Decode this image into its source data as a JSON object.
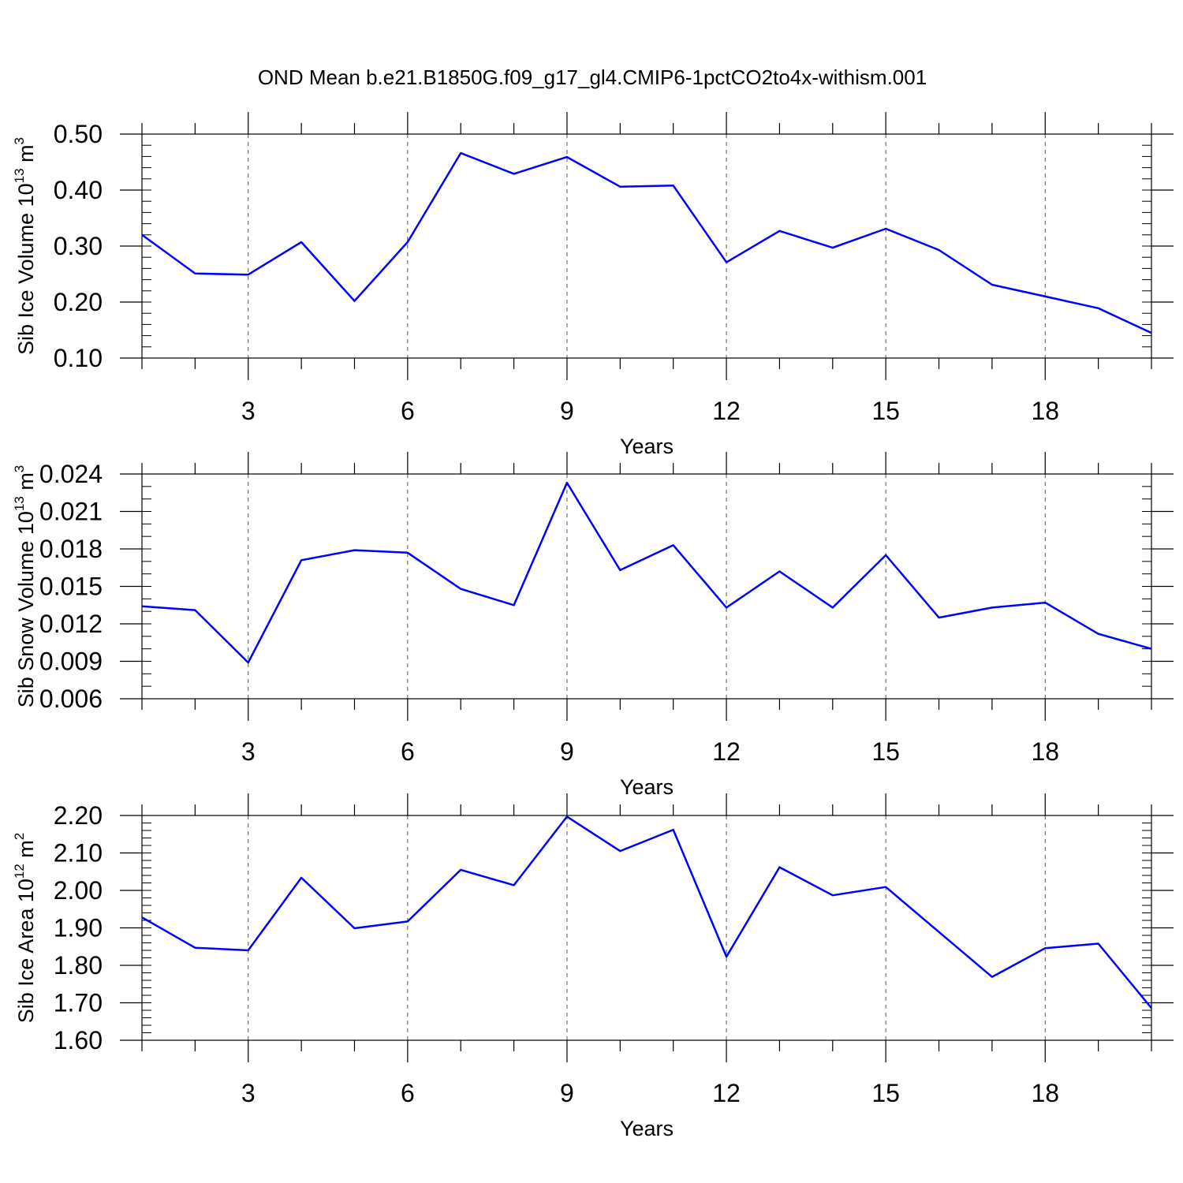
{
  "title": "OND Mean b.e21.B1850G.f09_g17_gl4.CMIP6-1pctCO2to4x-withism.001",
  "colors": {
    "line": "#0000ff",
    "axis": "#000000",
    "grid": "#555555"
  },
  "chart_data": [
    {
      "type": "line",
      "ylabel": {
        "main": "Sib Ice Volume 10",
        "sup": "13",
        "unit": " m",
        "unit_sup": "3"
      },
      "xlabel": "Years",
      "xlim": [
        1,
        20
      ],
      "xticks": [
        3,
        6,
        9,
        12,
        15,
        18
      ],
      "ylim": [
        0.1,
        0.5
      ],
      "yticks": [
        0.1,
        0.2,
        0.3,
        0.4,
        0.5
      ],
      "ytick_labels": [
        "0.10",
        "0.20",
        "0.30",
        "0.40",
        "0.50"
      ],
      "yminor": 0.02,
      "x": [
        1,
        2,
        3,
        4,
        5,
        6,
        7,
        8,
        9,
        10,
        11,
        12,
        13,
        14,
        15,
        16,
        17,
        18,
        19,
        20
      ],
      "y": [
        0.32,
        0.251,
        0.249,
        0.307,
        0.202,
        0.307,
        0.466,
        0.429,
        0.459,
        0.406,
        0.408,
        0.271,
        0.327,
        0.297,
        0.331,
        0.293,
        0.231,
        0.21,
        0.189,
        0.145
      ]
    },
    {
      "type": "line",
      "ylabel": {
        "main": "Sib Snow Volume 10",
        "sup": "13",
        "unit": " m",
        "unit_sup": "3"
      },
      "xlabel": "Years",
      "xlim": [
        1,
        20
      ],
      "xticks": [
        3,
        6,
        9,
        12,
        15,
        18
      ],
      "ylim": [
        0.006,
        0.024
      ],
      "yticks": [
        0.006,
        0.009,
        0.012,
        0.015,
        0.018,
        0.021,
        0.024
      ],
      "ytick_labels": [
        "0.006",
        "0.009",
        "0.012",
        "0.015",
        "0.018",
        "0.021",
        "0.024"
      ],
      "yminor": 0.001,
      "x": [
        1,
        2,
        3,
        4,
        5,
        6,
        7,
        8,
        9,
        10,
        11,
        12,
        13,
        14,
        15,
        16,
        17,
        18,
        19,
        20
      ],
      "y": [
        0.0134,
        0.0131,
        0.0089,
        0.0171,
        0.0179,
        0.0177,
        0.0148,
        0.0135,
        0.0233,
        0.0163,
        0.0183,
        0.0133,
        0.0162,
        0.0133,
        0.0175,
        0.0125,
        0.0133,
        0.0137,
        0.0112,
        0.01
      ]
    },
    {
      "type": "line",
      "ylabel": {
        "main": "Sib Ice Area 10",
        "sup": "12",
        "unit": " m",
        "unit_sup": "2"
      },
      "xlabel": "Years",
      "xlim": [
        1,
        20
      ],
      "xticks": [
        3,
        6,
        9,
        12,
        15,
        18
      ],
      "ylim": [
        1.6,
        2.2
      ],
      "yticks": [
        1.6,
        1.7,
        1.8,
        1.9,
        2.0,
        2.1,
        2.2
      ],
      "ytick_labels": [
        "1.60",
        "1.70",
        "1.80",
        "1.90",
        "2.00",
        "2.10",
        "2.20"
      ],
      "yminor": 0.02,
      "x": [
        1,
        2,
        3,
        4,
        5,
        6,
        7,
        8,
        9,
        10,
        11,
        12,
        13,
        14,
        15,
        16,
        17,
        18,
        19,
        20
      ],
      "y": [
        1.928,
        1.847,
        1.84,
        2.034,
        1.899,
        1.917,
        2.055,
        2.014,
        2.197,
        2.105,
        2.162,
        1.823,
        2.062,
        1.987,
        2.009,
        1.889,
        1.769,
        1.846,
        1.858,
        1.686
      ]
    }
  ]
}
